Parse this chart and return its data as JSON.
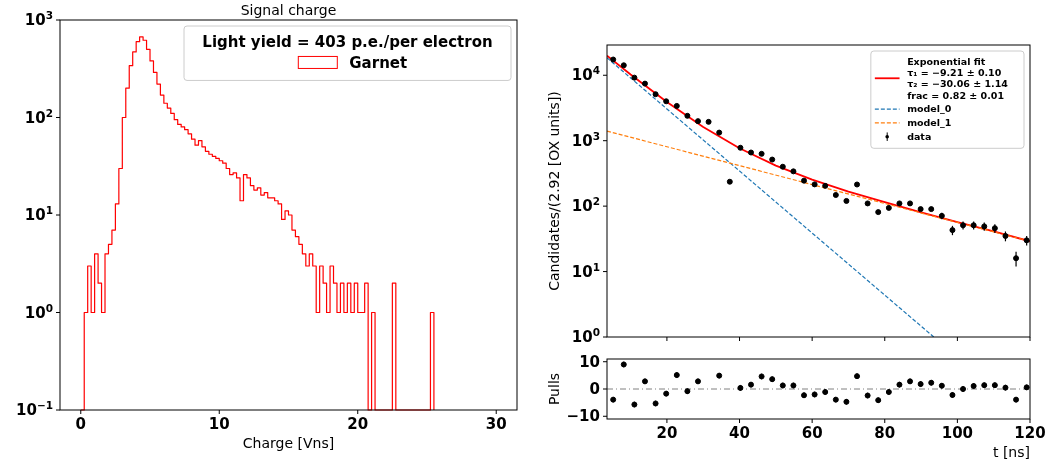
{
  "chart_data": [
    {
      "type": "histogram",
      "title": "Signal charge",
      "xlabel": "Charge [Vns]",
      "xlim": [
        -1.5,
        31.5
      ],
      "xticks": [
        0,
        10,
        20,
        30
      ],
      "ylim": [
        0.1,
        1000
      ],
      "yticks": [
        {
          "value": 0.1,
          "label": "10$^{−1}$"
        },
        {
          "value": 1,
          "label": "10$^{0}$"
        },
        {
          "value": 10,
          "label": "10$^{1}$"
        },
        {
          "value": 100,
          "label": "10$^{2}$"
        },
        {
          "value": 1000,
          "label": "10$^{3}$"
        }
      ],
      "log": "y",
      "legend": "top right",
      "legend_title": "Light yield = 403 p.e./per electron",
      "bins": [
        0,
        0.25,
        0.5,
        0.75,
        1,
        1.25,
        1.5,
        1.75,
        2,
        2.25,
        2.5,
        2.75,
        3,
        3.25,
        3.5,
        3.75,
        4,
        4.25,
        4.5,
        4.75,
        5,
        5.25,
        5.5,
        5.75,
        6,
        6.25,
        6.5,
        6.75,
        7,
        7.25,
        7.5,
        7.75,
        8,
        8.25,
        8.5,
        8.75,
        9,
        9.25,
        9.5,
        9.75,
        10,
        10.25,
        10.5,
        10.75,
        11,
        11.25,
        11.5,
        11.75,
        12,
        12.25,
        12.5,
        12.75,
        13,
        13.25,
        13.5,
        13.75,
        14,
        14.25,
        14.5,
        14.75,
        15,
        15.25,
        15.5,
        15.75,
        16,
        16.25,
        16.5,
        16.75,
        17,
        17.25,
        17.5,
        17.75,
        18,
        18.25,
        18.5,
        18.75,
        19,
        19.25,
        19.5,
        19.75,
        20,
        20.25,
        20.5,
        20.75,
        21,
        21.25,
        21.5,
        21.75,
        22,
        22.25,
        22.5,
        22.75,
        23,
        23.25,
        23.5,
        23.75,
        24,
        24.25,
        24.5,
        24.75,
        25,
        25.25,
        25.5
      ],
      "series": [
        {
          "name": "Garnet",
          "color": "#ff0000",
          "values": [
            null,
            1,
            3,
            1,
            4,
            2,
            1,
            4,
            5,
            7,
            13,
            30,
            100,
            200,
            340,
            470,
            600,
            670,
            620,
            500,
            380,
            290,
            220,
            170,
            140,
            125,
            110,
            95,
            85,
            80,
            75,
            68,
            60,
            52,
            58,
            50,
            45,
            42,
            40,
            38,
            36,
            34,
            30,
            26,
            27,
            24,
            14,
            26,
            24,
            20,
            18,
            19,
            16,
            17,
            15,
            15,
            14,
            13,
            9,
            11,
            10,
            7,
            6,
            5,
            4,
            3,
            4,
            3,
            1,
            3,
            2,
            1,
            3,
            2,
            1,
            2,
            1,
            2,
            1,
            2,
            1,
            1,
            2,
            null,
            1,
            null,
            null,
            null,
            null,
            null,
            2,
            null,
            null,
            null,
            null,
            null,
            null,
            null,
            null,
            null,
            null,
            1
          ]
        }
      ]
    },
    {
      "type": "scatter",
      "ylabel": "Candidates/(2.92 [OX units])",
      "xlim": [
        3.5,
        120
      ],
      "xticks": [
        20,
        40,
        60,
        80,
        100,
        120
      ],
      "ylim": [
        1,
        29000
      ],
      "yticks": [
        {
          "value": 1,
          "label": "10$^{0}$"
        },
        {
          "value": 10,
          "label": "10$^{1}$"
        },
        {
          "value": 100,
          "label": "10$^{2}$"
        },
        {
          "value": 1000,
          "label": "10$^{3}$"
        },
        {
          "value": 10000,
          "label": "10$^{4}$"
        }
      ],
      "log": "y",
      "tick_labels": "y",
      "legend": "top right",
      "x": [
        5.2,
        8.12,
        11.04,
        13.96,
        16.88,
        19.8,
        22.72,
        25.64,
        28.56,
        31.48,
        34.4,
        37.32,
        40.24,
        43.16,
        46.08,
        49,
        51.92,
        54.84,
        57.76,
        60.68,
        63.6,
        66.52,
        69.44,
        72.36,
        75.28,
        78.2,
        81.12,
        84.04,
        86.96,
        89.88,
        92.8,
        95.72,
        98.64,
        101.56,
        104.48,
        107.4,
        110.32,
        113.24,
        116.16,
        119.08
      ],
      "series": [
        {
          "name": "Exponential fit\nτ₁ = −9.21 ± 0.10\nτ₂ = −30.06 ± 1.14\nfrac = 0.82 ± 0.01",
          "type": "line",
          "color": "#ff0000",
          "line_style": "solid",
          "x": [
            3.5,
            10,
            20,
            30,
            40,
            50,
            60,
            70,
            80,
            90,
            100,
            110,
            120
          ],
          "values": [
            19900,
            10250,
            3890,
            1620,
            767,
            416,
            254,
            167,
            115,
            80,
            57,
            41,
            29
          ]
        },
        {
          "name": "model_0",
          "type": "line",
          "color": "#1f77b4",
          "line_style": "dashed",
          "x": [
            3.5,
            93.5
          ],
          "values": [
            18500,
            1
          ]
        },
        {
          "name": "model_1",
          "type": "line",
          "color": "#ff7f0e",
          "line_style": "dashed",
          "x": [
            3.5,
            120
          ],
          "values": [
            1400,
            29
          ]
        },
        {
          "name": "data",
          "marker": "circle",
          "color": "#000000",
          "values": [
            17400,
            14200,
            9200,
            7450,
            5130,
            4000,
            3400,
            2400,
            1990,
            1940,
            1330,
            236,
            780,
            660,
            630,
            515,
            400,
            340,
            245,
            215,
            204,
            148,
            120,
            214,
            110,
            81,
            94,
            110,
            110,
            90,
            90,
            71,
            43,
            51,
            51,
            49,
            46,
            35,
            16,
            30
          ],
          "errors": [
            null,
            null,
            null,
            null,
            null,
            null,
            null,
            null,
            null,
            null,
            null,
            null,
            null,
            null,
            null,
            null,
            null,
            null,
            null,
            null,
            null,
            null,
            null,
            null,
            null,
            null,
            null,
            null,
            null,
            null,
            null,
            8,
            7,
            7,
            7,
            7,
            7,
            6,
            4,
            5
          ]
        }
      ]
    },
    {
      "type": "scatter",
      "xlabel": "t [ns]",
      "ylabel": "Pulls",
      "xlim": [
        3.5,
        120
      ],
      "xticks": [
        20,
        40,
        60,
        80,
        100,
        120
      ],
      "ylim": [
        -11,
        11
      ],
      "yticks": [
        {
          "value": -10,
          "label": "−10"
        },
        0,
        10
      ],
      "marker": "circle",
      "ref_lines": [
        {
          "axis": "y",
          "value": 0,
          "color": "#808080",
          "line_style": "dashed"
        }
      ],
      "x": [
        5.2,
        8.12,
        11.04,
        13.96,
        16.88,
        19.8,
        22.72,
        25.64,
        28.56,
        34.4,
        40.24,
        43.16,
        46.08,
        49,
        51.92,
        54.84,
        57.76,
        60.68,
        63.6,
        66.52,
        69.44,
        72.36,
        75.28,
        78.2,
        81.12,
        84.04,
        86.96,
        89.88,
        92.8,
        95.72,
        98.64,
        101.56,
        104.48,
        107.4,
        110.32,
        113.24,
        116.16,
        119.08
      ],
      "series": [
        {
          "color": "#000000",
          "values": [
            -3.9,
            9,
            -5.7,
            2.8,
            -5.3,
            -1.7,
            5.1,
            -0.8,
            2.8,
            4.9,
            0.4,
            1.6,
            4.6,
            3.6,
            1.3,
            1.3,
            -2.3,
            -2,
            -1.1,
            -3.9,
            -4.7,
            4.7,
            -2.4,
            -4.1,
            -1.1,
            1.6,
            2.8,
            1.8,
            2.3,
            1.2,
            -2.2,
            0,
            1.1,
            1.4,
            1.4,
            0.5,
            -3.9,
            0.6
          ],
          "errors": [
            1,
            1,
            1,
            1,
            1,
            1,
            1,
            1,
            1,
            1,
            1,
            1,
            1,
            1,
            1,
            1,
            1,
            1,
            1,
            1,
            1,
            1,
            1,
            1,
            1,
            1,
            1,
            1,
            1,
            1,
            1,
            1,
            1,
            1,
            1,
            1,
            1,
            1
          ]
        }
      ]
    }
  ]
}
